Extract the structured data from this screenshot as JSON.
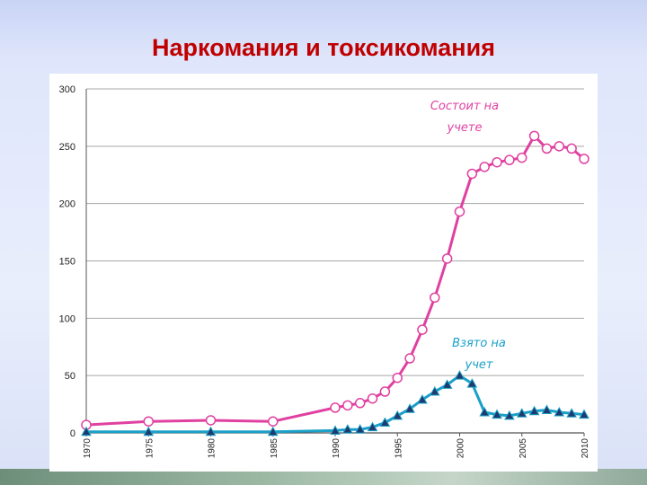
{
  "slide": {
    "title": "Наркомания и токсикомания"
  },
  "chart_data": {
    "type": "line",
    "title": "",
    "xlabel": "",
    "ylabel": "",
    "xlim": [
      1970,
      2010
    ],
    "ylim": [
      0,
      300
    ],
    "yticks": [
      "0",
      "50",
      "100",
      "150",
      "200",
      "250",
      "300"
    ],
    "xticks": [
      "1970",
      "1975",
      "1980",
      "1985",
      "1990",
      "1995",
      "2000",
      "2005",
      "2010"
    ],
    "grid": true,
    "colors": {
      "registered": "#e040a0",
      "taken": "#1aa0c8",
      "marker_fill": "#ffffff",
      "triangle_fill": "#1f3a6e",
      "grid": "#999999"
    },
    "series": [
      {
        "name": "",
        "label_lines": [
          "Состоит на",
          "учете"
        ],
        "marker": "circle",
        "x": [
          1970,
          1975,
          1980,
          1985,
          1990,
          1991,
          1992,
          1993,
          1994,
          1995,
          1996,
          1997,
          1998,
          1999,
          2000,
          2001,
          2002,
          2003,
          2004,
          2005,
          2006,
          2007,
          2008,
          2009,
          2010
        ],
        "values": [
          7,
          10,
          11,
          10,
          22,
          24,
          26,
          30,
          36,
          48,
          65,
          90,
          118,
          152,
          193,
          226,
          232,
          236,
          238,
          240,
          259,
          248,
          250,
          248,
          239
        ]
      },
      {
        "name": "",
        "label_lines": [
          "Взято на",
          "учет"
        ],
        "marker": "triangle",
        "x": [
          1970,
          1975,
          1980,
          1985,
          1990,
          1991,
          1992,
          1993,
          1994,
          1995,
          1996,
          1997,
          1998,
          1999,
          2000,
          2001,
          2002,
          2003,
          2004,
          2005,
          2006,
          2007,
          2008,
          2009,
          2010
        ],
        "values": [
          1,
          1,
          1,
          1,
          2,
          3,
          3,
          5,
          9,
          15,
          21,
          29,
          36,
          42,
          50,
          43,
          18,
          16,
          15,
          17,
          19,
          20,
          18,
          17,
          16
        ]
      }
    ]
  }
}
